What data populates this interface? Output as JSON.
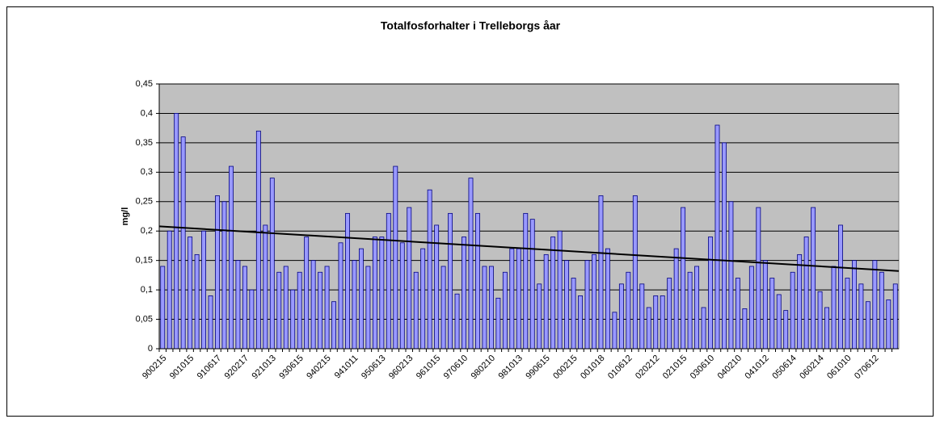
{
  "chart_data": {
    "type": "bar",
    "title": "Totalfosforhalter i Trelleborgs åar",
    "y_label": "mg/l",
    "categories": [
      "900215",
      null,
      null,
      null,
      "901015",
      null,
      null,
      null,
      "910617",
      null,
      null,
      null,
      "920217",
      null,
      null,
      null,
      "921013",
      null,
      null,
      null,
      "930615",
      null,
      null,
      null,
      "940215",
      null,
      null,
      null,
      "941011",
      null,
      null,
      null,
      "950613",
      null,
      null,
      null,
      "960213",
      null,
      null,
      null,
      "961015",
      null,
      null,
      null,
      "970610",
      null,
      null,
      null,
      "980210",
      null,
      null,
      null,
      "981013",
      null,
      null,
      null,
      "990615",
      null,
      null,
      null,
      "000215",
      null,
      null,
      null,
      "001018",
      null,
      null,
      null,
      "010612",
      null,
      null,
      null,
      "020212",
      null,
      null,
      null,
      "021015",
      null,
      null,
      null,
      "030610",
      null,
      null,
      null,
      "040210",
      null,
      null,
      null,
      "041012",
      null,
      null,
      null,
      "050614",
      null,
      null,
      null,
      "060214",
      null,
      null,
      null,
      "061010",
      null,
      null,
      null,
      "070612",
      null,
      null,
      null
    ],
    "values": [
      0.14,
      0.2,
      0.4,
      0.36,
      0.19,
      0.16,
      0.2,
      0.09,
      0.26,
      0.25,
      0.31,
      0.15,
      0.14,
      0.1,
      0.37,
      0.21,
      0.29,
      0.13,
      0.14,
      0.1,
      0.13,
      0.19,
      0.15,
      0.13,
      0.14,
      0.08,
      0.18,
      0.23,
      0.15,
      0.17,
      0.14,
      0.19,
      0.19,
      0.23,
      0.31,
      0.18,
      0.24,
      0.13,
      0.17,
      0.27,
      0.21,
      0.14,
      0.23,
      0.093,
      0.19,
      0.29,
      0.23,
      0.14,
      0.14,
      0.086,
      0.13,
      0.17,
      0.17,
      0.23,
      0.22,
      0.11,
      0.16,
      0.19,
      0.2,
      0.15,
      0.12,
      0.09,
      0.15,
      0.16,
      0.26,
      0.17,
      0.062,
      0.11,
      0.13,
      0.26,
      0.11,
      0.07,
      0.09,
      0.09,
      0.12,
      0.17,
      0.24,
      0.13,
      0.14,
      0.07,
      0.19,
      0.38,
      0.35,
      0.25,
      0.12,
      0.068,
      0.14,
      0.24,
      0.15,
      0.12,
      0.092,
      0.065,
      0.13,
      0.16,
      0.19,
      0.24,
      0.097,
      0.07,
      0.14,
      0.21,
      0.12,
      0.15,
      0.11,
      0.08,
      0.15,
      0.13,
      0.083,
      0.11
    ],
    "color": "#9999ff",
    "trendline": {
      "start": 0.208,
      "end": 0.132,
      "color": "#000000"
    },
    "ylim": [
      0,
      0.45
    ],
    "yticks": [
      0,
      {
        "value": 0.05,
        "label": "0,05"
      },
      {
        "value": 0.1,
        "label": "0,1"
      },
      {
        "value": 0.15,
        "label": "0,15"
      },
      {
        "value": 0.2,
        "label": "0,2"
      },
      {
        "value": 0.25,
        "label": "0,25"
      },
      {
        "value": 0.3,
        "label": "0,3"
      },
      {
        "value": 0.35,
        "label": "0,35"
      },
      {
        "value": 0.4,
        "label": "0,4"
      },
      {
        "value": 0.45,
        "label": "0,45"
      }
    ],
    "grid": true
  }
}
